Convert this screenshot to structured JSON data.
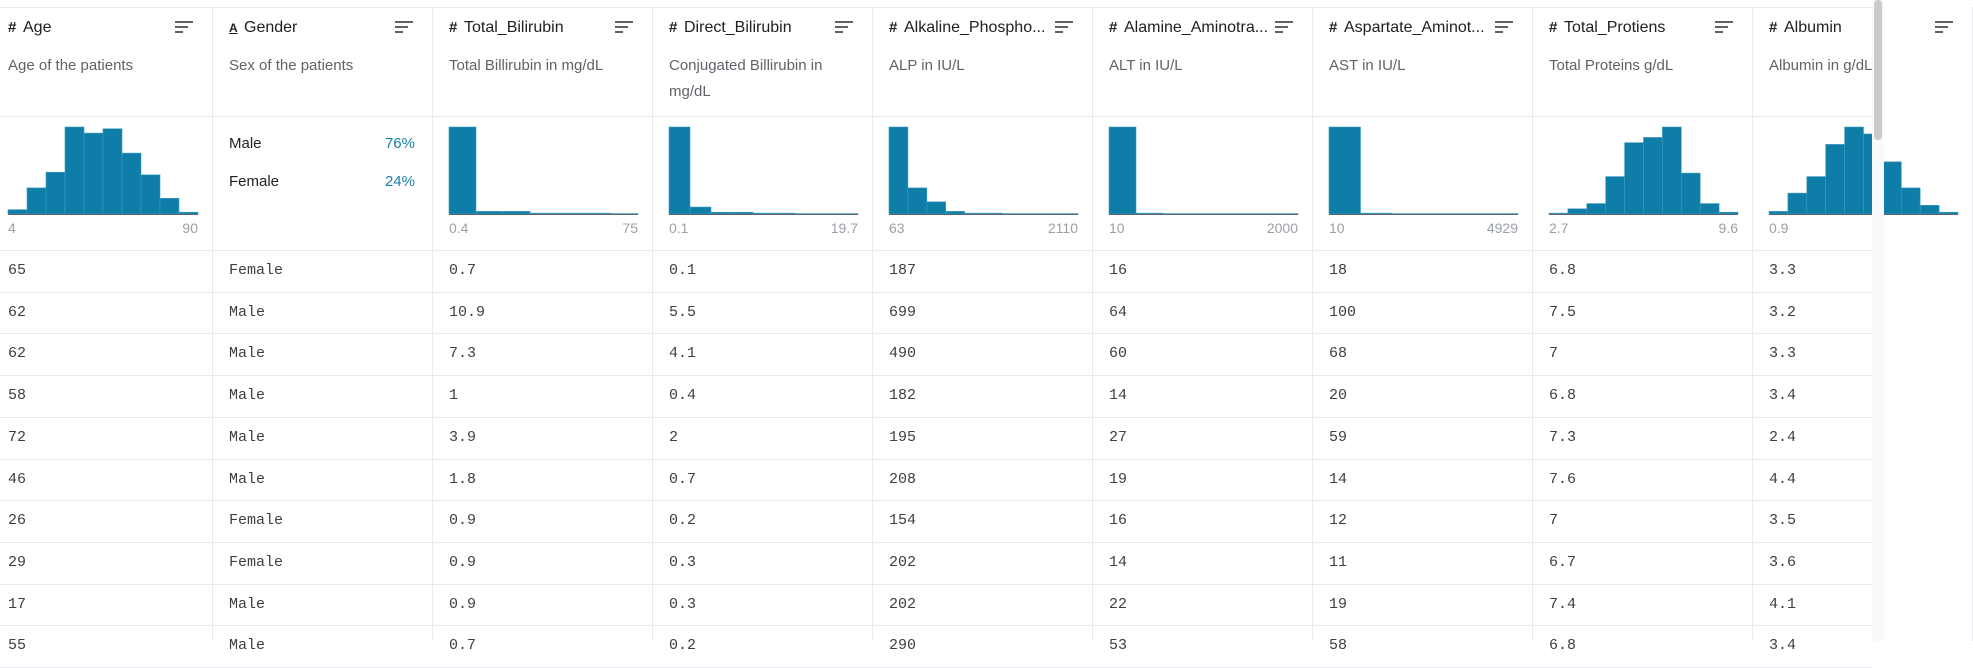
{
  "columns": [
    {
      "icon": "#",
      "name": "Age",
      "description": "Age of the patients",
      "histogram": [
        5,
        30,
        48,
        100,
        93,
        98,
        70,
        45,
        18,
        2
      ],
      "min": "4",
      "max": "90"
    },
    {
      "icon": "A",
      "name": "Gender",
      "description": "Sex of the patients",
      "categories": [
        {
          "label": "Male",
          "share": "76%"
        },
        {
          "label": "Female",
          "share": "24%"
        }
      ]
    },
    {
      "icon": "#",
      "name": "Total_Bilirubin",
      "description": "Total Billirubin in mg/dL",
      "histogram": [
        100,
        3,
        3,
        1,
        1,
        1,
        0.5
      ],
      "min": "0.4",
      "max": "75"
    },
    {
      "icon": "#",
      "name": "Direct_Bilirubin",
      "description": "Conjugated Billirubin in mg/dL",
      "histogram": [
        100,
        8,
        2,
        2,
        1,
        1,
        0.5,
        0.5,
        0.5
      ],
      "min": "0.1",
      "max": "19.7"
    },
    {
      "icon": "#",
      "name": "Alkaline_Phospho...",
      "description": "ALP in IU/L",
      "histogram": [
        100,
        30,
        14,
        3,
        1,
        1,
        0.5,
        0.5,
        0.5,
        0.5
      ],
      "min": "63",
      "max": "2110"
    },
    {
      "icon": "#",
      "name": "Alamine_Aminotra...",
      "description": "ALT in IU/L",
      "histogram": [
        100,
        1,
        0.5,
        0.5,
        0.5,
        0.5,
        0.5
      ],
      "min": "10",
      "max": "2000"
    },
    {
      "icon": "#",
      "name": "Aspartate_Aminot...",
      "description": "AST in IU/L",
      "histogram": [
        100,
        1,
        0.5,
        0.5,
        0.5,
        0.5
      ],
      "min": "10",
      "max": "4929"
    },
    {
      "icon": "#",
      "name": "Total_Protiens",
      "description": "Total Proteins g/dL",
      "histogram": [
        1,
        6,
        12,
        43,
        82,
        88,
        100,
        47,
        12,
        2
      ],
      "min": "2.7",
      "max": "9.6"
    },
    {
      "icon": "#",
      "name": "Albumin",
      "description": "Albumin in g/dL",
      "histogram": [
        3,
        24,
        43,
        80,
        100,
        92,
        60,
        30,
        10,
        2
      ],
      "min": "0.9"
    }
  ],
  "rows": [
    [
      "65",
      "Female",
      "0.7",
      "0.1",
      "187",
      "16",
      "18",
      "6.8",
      "3.3"
    ],
    [
      "62",
      "Male",
      "10.9",
      "5.5",
      "699",
      "64",
      "100",
      "7.5",
      "3.2"
    ],
    [
      "62",
      "Male",
      "7.3",
      "4.1",
      "490",
      "60",
      "68",
      "7",
      "3.3"
    ],
    [
      "58",
      "Male",
      "1",
      "0.4",
      "182",
      "14",
      "20",
      "6.8",
      "3.4"
    ],
    [
      "72",
      "Male",
      "3.9",
      "2",
      "195",
      "27",
      "59",
      "7.3",
      "2.4"
    ],
    [
      "46",
      "Male",
      "1.8",
      "0.7",
      "208",
      "19",
      "14",
      "7.6",
      "4.4"
    ],
    [
      "26",
      "Female",
      "0.9",
      "0.2",
      "154",
      "16",
      "12",
      "7",
      "3.5"
    ],
    [
      "29",
      "Female",
      "0.9",
      "0.3",
      "202",
      "14",
      "11",
      "6.7",
      "3.6"
    ],
    [
      "17",
      "Male",
      "0.9",
      "0.3",
      "202",
      "22",
      "19",
      "7.4",
      "4.1"
    ],
    [
      "55",
      "Male",
      "0.7",
      "0.2",
      "290",
      "53",
      "58",
      "6.8",
      "3.4"
    ]
  ]
}
